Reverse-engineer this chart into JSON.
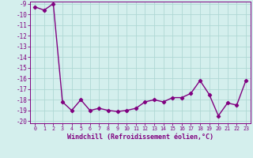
{
  "x": [
    0,
    1,
    2,
    3,
    4,
    5,
    6,
    7,
    8,
    9,
    10,
    11,
    12,
    13,
    14,
    15,
    16,
    17,
    18,
    19,
    20,
    21,
    22,
    23
  ],
  "y": [
    -9.3,
    -9.6,
    -9.0,
    -18.2,
    -19.0,
    -18.0,
    -19.0,
    -18.8,
    -19.0,
    -19.1,
    -19.0,
    -18.8,
    -18.2,
    -18.0,
    -18.2,
    -17.8,
    -17.8,
    -17.4,
    -16.2,
    -17.5,
    -19.5,
    -18.3,
    -18.5,
    -16.2
  ],
  "xlim": [
    -0.5,
    23.5
  ],
  "ylim": [
    -20.2,
    -8.8
  ],
  "xticks": [
    0,
    1,
    2,
    3,
    4,
    5,
    6,
    7,
    8,
    9,
    10,
    11,
    12,
    13,
    14,
    15,
    16,
    17,
    18,
    19,
    20,
    21,
    22,
    23
  ],
  "yticks": [
    -20,
    -19,
    -18,
    -17,
    -16,
    -15,
    -14,
    -13,
    -12,
    -11,
    -10,
    -9
  ],
  "xlabel": "Windchill (Refroidissement éolien,°C)",
  "line_color": "#800080",
  "marker": "D",
  "bg_color": "#d4efed",
  "grid_color": "#afd8d4",
  "marker_size": 2.2,
  "line_width": 1.0,
  "xlabel_fontsize": 6.0,
  "xtick_fontsize": 4.8,
  "ytick_fontsize": 5.5
}
